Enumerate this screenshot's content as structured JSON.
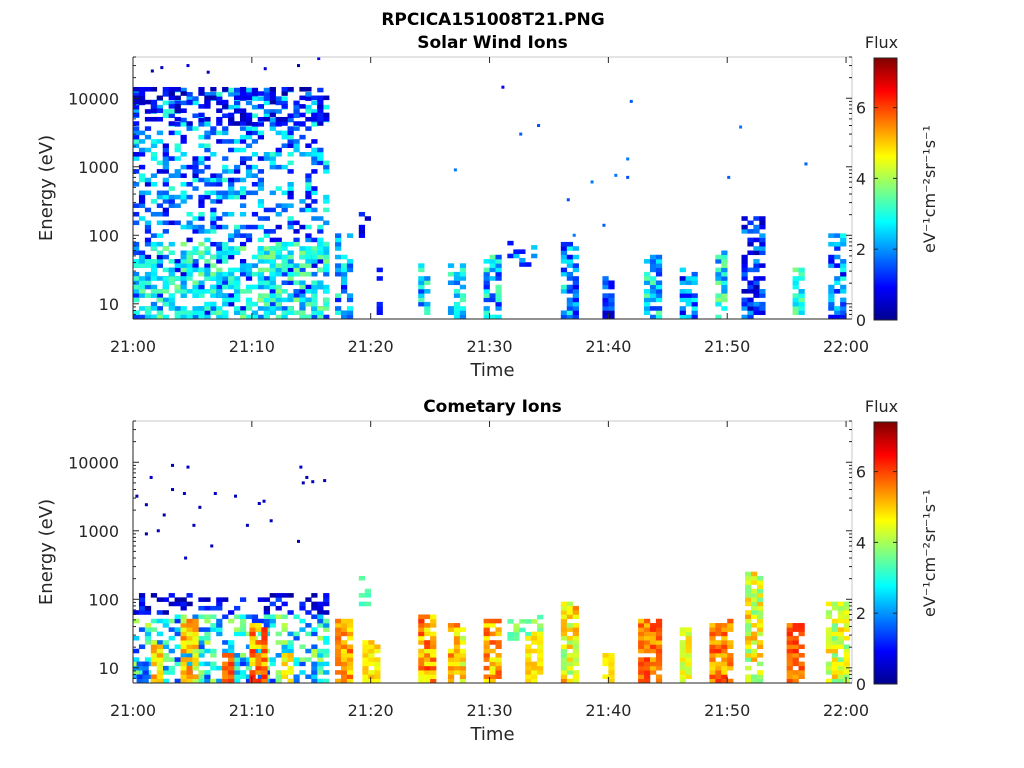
{
  "figure": {
    "filename_title": "RPCICA151008T21.PNG"
  },
  "colorbar": {
    "title": "Flux",
    "unit_label": "eV⁻¹cm⁻²sr⁻¹s⁻¹",
    "ticks": [
      0,
      2,
      4,
      6
    ],
    "range": [
      0,
      7.4
    ],
    "colormap": "jet"
  },
  "chart_data": [
    {
      "type": "heatmap",
      "title": "Solar Wind Ions",
      "xlabel": "Time",
      "ylabel": "Energy (eV)",
      "x_ticks": [
        "21:00",
        "21:10",
        "21:20",
        "21:30",
        "21:40",
        "21:50",
        "22:00"
      ],
      "y_ticks": [
        10,
        100,
        1000,
        10000
      ],
      "y_tick_labels": [
        "10",
        "100",
        "1000",
        "10000"
      ],
      "y_scale": "log",
      "ylim": [
        6,
        40000
      ],
      "xlim_minutes": [
        0,
        60.5
      ],
      "seed": 11,
      "blocks": [
        {
          "t0": 0,
          "t1": 16.5,
          "emin": 6,
          "emax": 14000,
          "density": 0.42,
          "fmin": 0.6,
          "fmax": 3.2
        },
        {
          "t0": 0,
          "t1": 16.5,
          "emin": 6,
          "emax": 80,
          "density": 0.45,
          "fmin": 2.2,
          "fmax": 3.8
        },
        {
          "t0": 0,
          "t1": 16.5,
          "emin": 4000,
          "emax": 14000,
          "density": 0.35,
          "fmin": 0.2,
          "fmax": 1.2
        },
        {
          "t0": 17,
          "t1": 18.2,
          "emin": 6,
          "emax": 100,
          "density": 0.55,
          "fmin": 1.0,
          "fmax": 3.4
        },
        {
          "t0": 19,
          "t1": 20,
          "emin": 80,
          "emax": 200,
          "density": 0.5,
          "fmin": 0.4,
          "fmax": 1.4
        },
        {
          "t0": 20.5,
          "t1": 21,
          "emin": 6,
          "emax": 30,
          "density": 0.5,
          "fmin": 0.4,
          "fmax": 1.2
        },
        {
          "t0": 24,
          "t1": 25,
          "emin": 6,
          "emax": 35,
          "density": 0.7,
          "fmin": 1.2,
          "fmax": 3.6
        },
        {
          "t0": 26.5,
          "t1": 27.8,
          "emin": 6,
          "emax": 35,
          "density": 0.7,
          "fmin": 1.6,
          "fmax": 3.4
        },
        {
          "t0": 29.5,
          "t1": 30.8,
          "emin": 6,
          "emax": 50,
          "density": 0.7,
          "fmin": 1.0,
          "fmax": 3.6
        },
        {
          "t0": 31.5,
          "t1": 34,
          "emin": 35,
          "emax": 80,
          "density": 0.4,
          "fmin": 1.0,
          "fmax": 2.6
        },
        {
          "t0": 36,
          "t1": 37.3,
          "emin": 6,
          "emax": 80,
          "density": 0.7,
          "fmin": 0.6,
          "fmax": 3.2
        },
        {
          "t0": 39.5,
          "t1": 40.3,
          "emin": 6,
          "emax": 25,
          "density": 0.8,
          "fmin": 0.4,
          "fmax": 2.0
        },
        {
          "t0": 43,
          "t1": 44.5,
          "emin": 6,
          "emax": 50,
          "density": 0.7,
          "fmin": 1.2,
          "fmax": 3.6
        },
        {
          "t0": 46,
          "t1": 47.3,
          "emin": 6,
          "emax": 30,
          "density": 0.7,
          "fmin": 0.6,
          "fmax": 3.0
        },
        {
          "t0": 49,
          "t1": 50,
          "emin": 6,
          "emax": 60,
          "density": 0.7,
          "fmin": 1.5,
          "fmax": 3.8
        },
        {
          "t0": 51.2,
          "t1": 53,
          "emin": 6,
          "emax": 180,
          "density": 0.6,
          "fmin": 0.3,
          "fmax": 2.2
        },
        {
          "t0": 55.5,
          "t1": 56.5,
          "emin": 6,
          "emax": 35,
          "density": 0.75,
          "fmin": 2.0,
          "fmax": 3.8
        },
        {
          "t0": 58.5,
          "t1": 60,
          "emin": 6,
          "emax": 100,
          "density": 0.6,
          "fmin": 0.6,
          "fmax": 3.0
        }
      ],
      "points": [
        {
          "t": 1.5,
          "e": 25000,
          "f": 0.3
        },
        {
          "t": 2.3,
          "e": 28000,
          "f": 0.5
        },
        {
          "t": 4.5,
          "e": 30000,
          "f": 0.7
        },
        {
          "t": 6.2,
          "e": 24000,
          "f": 0.4
        },
        {
          "t": 11.0,
          "e": 27000,
          "f": 0.6
        },
        {
          "t": 13.8,
          "e": 30000,
          "f": 0.3
        },
        {
          "t": 15.5,
          "e": 38000,
          "f": 0.8
        },
        {
          "t": 31.0,
          "e": 14500,
          "f": 0.8
        },
        {
          "t": 32.5,
          "e": 3000,
          "f": 1.6
        },
        {
          "t": 34.0,
          "e": 4000,
          "f": 1.5
        },
        {
          "t": 27.0,
          "e": 900,
          "f": 1.8
        },
        {
          "t": 36.5,
          "e": 330,
          "f": 1.5
        },
        {
          "t": 38.5,
          "e": 600,
          "f": 1.8
        },
        {
          "t": 40.5,
          "e": 750,
          "f": 1.8
        },
        {
          "t": 41.5,
          "e": 1300,
          "f": 1.8
        },
        {
          "t": 41.5,
          "e": 700,
          "f": 1.5
        },
        {
          "t": 41.8,
          "e": 9000,
          "f": 1.6
        },
        {
          "t": 39.5,
          "e": 140,
          "f": 1.6
        },
        {
          "t": 50.0,
          "e": 700,
          "f": 1.6
        },
        {
          "t": 51.0,
          "e": 3800,
          "f": 1.8
        },
        {
          "t": 56.5,
          "e": 1100,
          "f": 1.6
        },
        {
          "t": 37.0,
          "e": 100,
          "f": 1.8
        }
      ]
    },
    {
      "type": "heatmap",
      "title": "Cometary Ions",
      "xlabel": "Time",
      "ylabel": "Energy (eV)",
      "x_ticks": [
        "21:00",
        "21:10",
        "21:20",
        "21:30",
        "21:40",
        "21:50",
        "22:00"
      ],
      "y_ticks": [
        10,
        100,
        1000,
        10000
      ],
      "y_tick_labels": [
        "10",
        "100",
        "1000",
        "10000"
      ],
      "y_scale": "log",
      "ylim": [
        6,
        40000
      ],
      "xlim_minutes": [
        0,
        60.5
      ],
      "seed": 23,
      "blocks": [
        {
          "t0": 0,
          "t1": 16.5,
          "emin": 60,
          "emax": 120,
          "density": 0.35,
          "fmin": 0.2,
          "fmax": 1.5
        },
        {
          "t0": 0,
          "t1": 16.5,
          "emin": 6,
          "emax": 60,
          "density": 0.55,
          "fmin": 1.2,
          "fmax": 4.2
        },
        {
          "t0": 0.3,
          "t1": 1.2,
          "emin": 6,
          "emax": 12,
          "density": 0.8,
          "fmin": 1.2,
          "fmax": 2.0
        },
        {
          "t0": 1.5,
          "t1": 2.5,
          "emin": 6,
          "emax": 25,
          "density": 0.8,
          "fmin": 4.2,
          "fmax": 5.6
        },
        {
          "t0": 4,
          "t1": 5.5,
          "emin": 6,
          "emax": 45,
          "density": 0.8,
          "fmin": 4.0,
          "fmax": 5.8
        },
        {
          "t0": 7.5,
          "t1": 8.5,
          "emin": 6,
          "emax": 15,
          "density": 0.85,
          "fmin": 5.4,
          "fmax": 6.2
        },
        {
          "t0": 9.8,
          "t1": 11.2,
          "emin": 6,
          "emax": 40,
          "density": 0.85,
          "fmin": 4.5,
          "fmax": 6.3
        },
        {
          "t0": 12.5,
          "t1": 13.5,
          "emin": 6,
          "emax": 15,
          "density": 0.8,
          "fmin": 4.2,
          "fmax": 5.2
        },
        {
          "t0": 17,
          "t1": 18.5,
          "emin": 6,
          "emax": 50,
          "density": 0.85,
          "fmin": 4.6,
          "fmax": 6.0
        },
        {
          "t0": 19.3,
          "t1": 20.5,
          "emin": 6,
          "emax": 25,
          "density": 0.85,
          "fmin": 4.4,
          "fmax": 5.2
        },
        {
          "t0": 19,
          "t1": 20,
          "emin": 80,
          "emax": 200,
          "density": 0.45,
          "fmin": 3.0,
          "fmax": 3.6
        },
        {
          "t0": 24,
          "t1": 25.5,
          "emin": 6,
          "emax": 60,
          "density": 0.85,
          "fmin": 4.4,
          "fmax": 6.2
        },
        {
          "t0": 26.5,
          "t1": 28,
          "emin": 6,
          "emax": 40,
          "density": 0.85,
          "fmin": 4.0,
          "fmax": 5.8
        },
        {
          "t0": 29.5,
          "t1": 31,
          "emin": 6,
          "emax": 50,
          "density": 0.85,
          "fmin": 4.4,
          "fmax": 6.0
        },
        {
          "t0": 31.5,
          "t1": 34.5,
          "emin": 25,
          "emax": 55,
          "density": 0.45,
          "fmin": 3.2,
          "fmax": 4.2
        },
        {
          "t0": 33,
          "t1": 34.2,
          "emin": 6,
          "emax": 30,
          "density": 0.85,
          "fmin": 4.4,
          "fmax": 5.2
        },
        {
          "t0": 36,
          "t1": 37.5,
          "emin": 6,
          "emax": 90,
          "density": 0.8,
          "fmin": 3.6,
          "fmax": 5.6
        },
        {
          "t0": 39.5,
          "t1": 40.5,
          "emin": 6,
          "emax": 15,
          "density": 0.9,
          "fmin": 4.6,
          "fmax": 5.0
        },
        {
          "t0": 42.5,
          "t1": 44.5,
          "emin": 6,
          "emax": 45,
          "density": 0.85,
          "fmin": 5.0,
          "fmax": 6.2
        },
        {
          "t0": 46,
          "t1": 47,
          "emin": 6,
          "emax": 35,
          "density": 0.85,
          "fmin": 4.0,
          "fmax": 5.0
        },
        {
          "t0": 48.5,
          "t1": 50.5,
          "emin": 6,
          "emax": 45,
          "density": 0.85,
          "fmin": 4.8,
          "fmax": 6.2
        },
        {
          "t0": 51.5,
          "t1": 53,
          "emin": 6,
          "emax": 240,
          "density": 0.75,
          "fmin": 3.4,
          "fmax": 5.4
        },
        {
          "t0": 55,
          "t1": 56.5,
          "emin": 6,
          "emax": 40,
          "density": 0.85,
          "fmin": 5.2,
          "fmax": 6.3
        },
        {
          "t0": 58.3,
          "t1": 60,
          "emin": 6,
          "emax": 90,
          "density": 0.75,
          "fmin": 3.6,
          "fmax": 5.2
        }
      ],
      "points": [
        {
          "t": 0.2,
          "e": 3200,
          "f": 0.3
        },
        {
          "t": 1.0,
          "e": 2400,
          "f": 0.4
        },
        {
          "t": 1.4,
          "e": 6000,
          "f": 0.5
        },
        {
          "t": 2.0,
          "e": 1000,
          "f": 0.4
        },
        {
          "t": 2.5,
          "e": 1700,
          "f": 0.3
        },
        {
          "t": 3.2,
          "e": 4000,
          "f": 0.5
        },
        {
          "t": 3.2,
          "e": 9000,
          "f": 0.4
        },
        {
          "t": 4.2,
          "e": 3500,
          "f": 0.6
        },
        {
          "t": 4.5,
          "e": 8500,
          "f": 0.5
        },
        {
          "t": 5.0,
          "e": 1200,
          "f": 0.4
        },
        {
          "t": 5.5,
          "e": 2200,
          "f": 0.3
        },
        {
          "t": 6.8,
          "e": 3500,
          "f": 0.5
        },
        {
          "t": 8.5,
          "e": 3200,
          "f": 0.4
        },
        {
          "t": 9.5,
          "e": 1200,
          "f": 0.4
        },
        {
          "t": 10.5,
          "e": 2500,
          "f": 0.5
        },
        {
          "t": 10.9,
          "e": 2700,
          "f": 0.5
        },
        {
          "t": 11.5,
          "e": 1400,
          "f": 0.4
        },
        {
          "t": 14.0,
          "e": 8500,
          "f": 0.5
        },
        {
          "t": 14.2,
          "e": 5000,
          "f": 0.3
        },
        {
          "t": 14.5,
          "e": 6000,
          "f": 0.4
        },
        {
          "t": 15.0,
          "e": 5200,
          "f": 0.5
        },
        {
          "t": 16.0,
          "e": 5400,
          "f": 0.4
        },
        {
          "t": 13.8,
          "e": 700,
          "f": 0.4
        },
        {
          "t": 6.5,
          "e": 600,
          "f": 0.4
        },
        {
          "t": 4.3,
          "e": 400,
          "f": 0.5
        },
        {
          "t": 1.0,
          "e": 900,
          "f": 0.3
        }
      ]
    }
  ]
}
